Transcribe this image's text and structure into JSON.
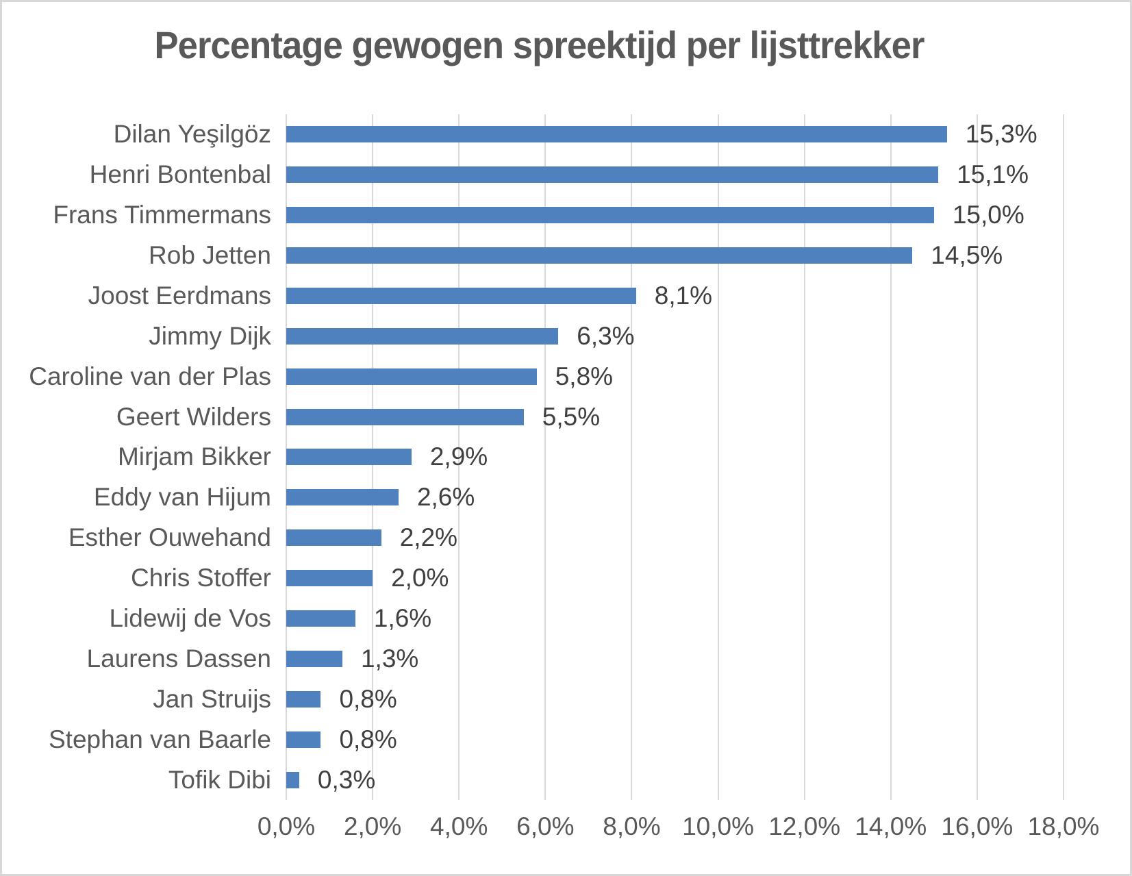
{
  "title": "Percentage gewogen spreektijd per lijsttrekker",
  "colors": {
    "bar": "#4e81bd",
    "gridline": "#d9d9d9",
    "axis_text": "#595959",
    "value_text": "#3f3f3f",
    "border": "#d7d7d7",
    "background": "#ffffff"
  },
  "chart_data": {
    "type": "bar",
    "orientation": "horizontal",
    "title": "Percentage gewogen spreektijd per lijsttrekker",
    "categories": [
      "Dilan Yeşilgöz",
      "Henri Bontenbal",
      "Frans Timmermans",
      "Rob Jetten",
      "Joost Eerdmans",
      "Jimmy Dijk",
      "Caroline van der Plas",
      "Geert Wilders",
      "Mirjam Bikker",
      "Eddy van Hijum",
      "Esther Ouwehand",
      "Chris Stoffer",
      "Lidewij de Vos",
      "Laurens Dassen",
      "Jan Struijs",
      "Stephan van Baarle",
      "Tofik Dibi"
    ],
    "values": [
      15.3,
      15.1,
      15.0,
      14.5,
      8.1,
      6.3,
      5.8,
      5.5,
      2.9,
      2.6,
      2.2,
      2.0,
      1.6,
      1.3,
      0.8,
      0.8,
      0.3
    ],
    "value_labels": [
      "15,3%",
      "15,1%",
      "15,0%",
      "14,5%",
      "8,1%",
      "6,3%",
      "5,8%",
      "5,5%",
      "2,9%",
      "2,6%",
      "2,2%",
      "2,0%",
      "1,6%",
      "1,3%",
      "0,8%",
      "0,8%",
      "0,3%"
    ],
    "xlabel": "",
    "ylabel": "",
    "xlim": [
      0,
      18
    ],
    "x_tick_step": 2,
    "x_tick_labels": [
      "0,0%",
      "2,0%",
      "4,0%",
      "6,0%",
      "8,0%",
      "10,0%",
      "12,0%",
      "14,0%",
      "16,0%",
      "18,0%"
    ],
    "grid": "vertical",
    "legend": "none",
    "data_labels": "outside-end"
  }
}
